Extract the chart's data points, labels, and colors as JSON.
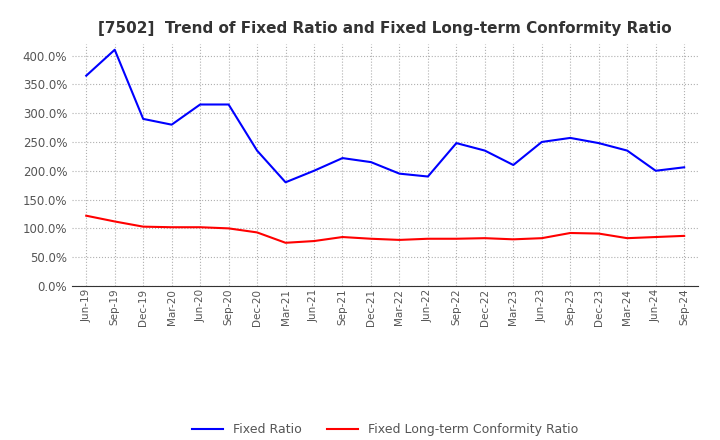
{
  "title": "[7502]  Trend of Fixed Ratio and Fixed Long-term Conformity Ratio",
  "x_labels": [
    "Jun-19",
    "Sep-19",
    "Dec-19",
    "Mar-20",
    "Jun-20",
    "Sep-20",
    "Dec-20",
    "Mar-21",
    "Jun-21",
    "Sep-21",
    "Dec-21",
    "Mar-22",
    "Jun-22",
    "Sep-22",
    "Dec-22",
    "Mar-23",
    "Jun-23",
    "Sep-23",
    "Dec-23",
    "Mar-24",
    "Jun-24",
    "Sep-24"
  ],
  "fixed_ratio": [
    365,
    410,
    290,
    280,
    315,
    315,
    235,
    180,
    200,
    222,
    215,
    195,
    190,
    248,
    235,
    210,
    250,
    257,
    248,
    235,
    200,
    206
  ],
  "fixed_lt_ratio": [
    122,
    112,
    103,
    102,
    102,
    100,
    93,
    75,
    78,
    85,
    82,
    80,
    82,
    82,
    83,
    81,
    83,
    92,
    91,
    83,
    85,
    87
  ],
  "ylim": [
    0,
    420
  ],
  "yticks": [
    0,
    50,
    100,
    150,
    200,
    250,
    300,
    350,
    400
  ],
  "line_color_fixed": "#0000ff",
  "line_color_lt": "#ff0000",
  "grid_color": "#b0b0b0",
  "bg_color": "#ffffff",
  "legend_fixed": "Fixed Ratio",
  "legend_lt": "Fixed Long-term Conformity Ratio",
  "title_color": "#333333",
  "tick_color": "#555555"
}
